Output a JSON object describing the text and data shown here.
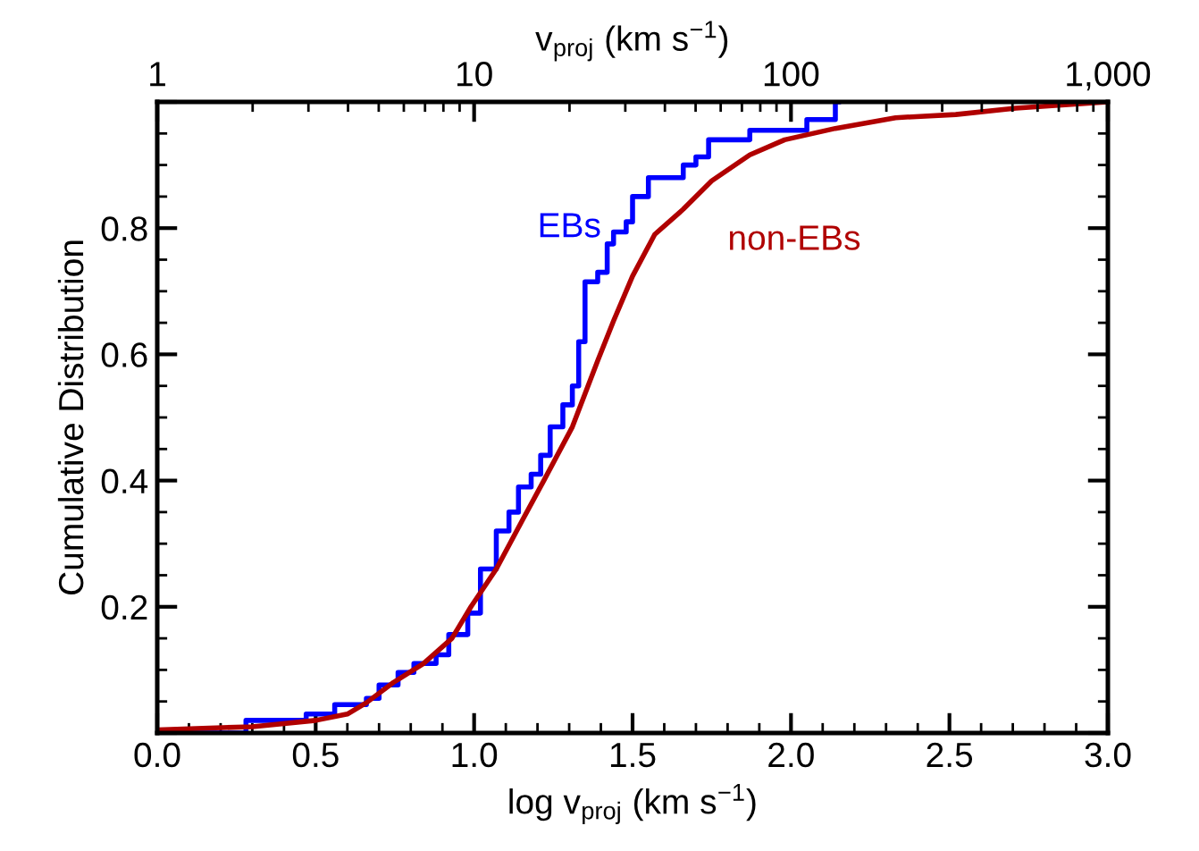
{
  "chart_data": {
    "type": "line",
    "xlabel": "log v$_{proj}$ (km s$^{−1}$)",
    "ylabel": "Cumulative Distribution",
    "x2label": "v$_{proj}$ (km s$^{−1}$)",
    "xlim": [
      0,
      3
    ],
    "xticks": [
      {
        "value": 0,
        "label": "0.0"
      },
      0.5,
      {
        "value": 1,
        "label": "1.0"
      },
      1.5,
      {
        "value": 2,
        "label": "2.0"
      },
      2.5,
      {
        "value": 3,
        "label": "3.0"
      }
    ],
    "ylim": [
      0,
      1
    ],
    "yticks": [
      {
        "value": 0,
        "label": null
      },
      0.2,
      0.4,
      0.6,
      0.8,
      {
        "value": 1,
        "label": null
      }
    ],
    "log": "x2",
    "x2lim": [
      1,
      1000
    ],
    "x2ticks": [
      1,
      10,
      100,
      {
        "value": 1000,
        "label": "1,000"
      }
    ],
    "grid": false,
    "legend": false,
    "marker": "none",
    "line_style": "solid",
    "series": [
      {
        "name": "EBs",
        "type": "step",
        "color": "#0000ff",
        "x": [
          0.0,
          0.28,
          0.47,
          0.56,
          0.66,
          0.7,
          0.76,
          0.81,
          0.88,
          0.92,
          0.98,
          1.02,
          1.07,
          1.11,
          1.14,
          1.18,
          1.21,
          1.24,
          1.28,
          1.31,
          1.33,
          1.35,
          1.39,
          1.42,
          1.44,
          1.48,
          1.5,
          1.55,
          1.66,
          1.7,
          1.74,
          1.87,
          2.05,
          2.14,
          2.15
        ],
        "values": [
          0.0,
          0.02,
          0.03,
          0.045,
          0.055,
          0.076,
          0.096,
          0.11,
          0.124,
          0.156,
          0.19,
          0.26,
          0.32,
          0.35,
          0.39,
          0.41,
          0.44,
          0.485,
          0.52,
          0.55,
          0.62,
          0.715,
          0.73,
          0.775,
          0.794,
          0.81,
          0.85,
          0.88,
          0.9,
          0.913,
          0.94,
          0.955,
          0.972,
          1.0,
          1.0
        ]
      },
      {
        "name": "non-EBs",
        "color": "#b00000",
        "x": [
          0.0,
          0.3,
          0.5,
          0.6,
          0.66,
          0.745,
          0.84,
          0.93,
          0.99,
          1.07,
          1.15,
          1.22,
          1.31,
          1.39,
          1.44,
          1.5,
          1.57,
          1.66,
          1.75,
          1.87,
          1.98,
          2.14,
          2.33,
          2.52,
          2.71,
          3.0
        ],
        "values": [
          0.005,
          0.01,
          0.02,
          0.03,
          0.048,
          0.08,
          0.11,
          0.15,
          0.2,
          0.26,
          0.335,
          0.4,
          0.485,
          0.59,
          0.653,
          0.724,
          0.79,
          0.83,
          0.875,
          0.916,
          0.94,
          0.958,
          0.975,
          0.98,
          0.99,
          1.0
        ]
      }
    ]
  }
}
